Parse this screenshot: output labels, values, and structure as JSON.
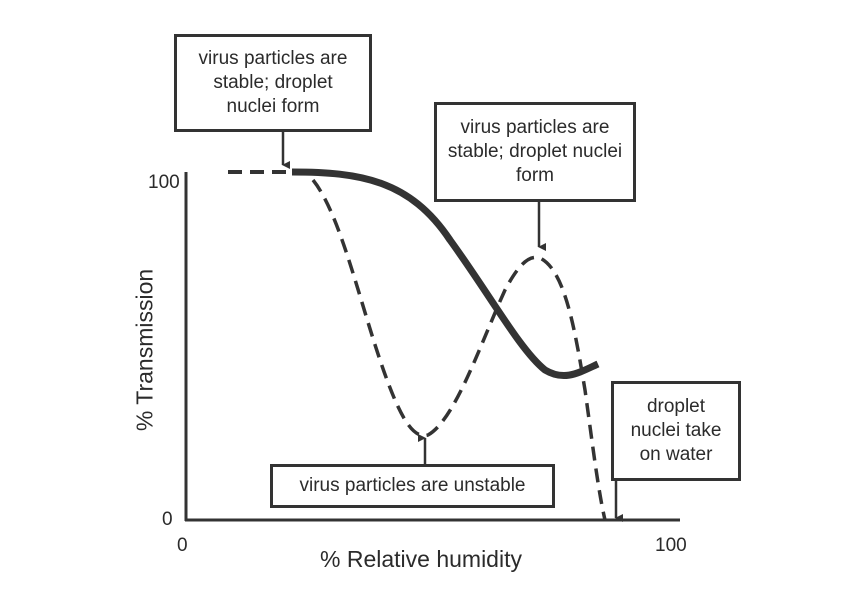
{
  "diagram": {
    "y_axis_label": "% Transmission",
    "x_axis_label": "% Relative humidity",
    "y_ticks": [
      "100",
      "0"
    ],
    "x_ticks": [
      "0",
      "100"
    ],
    "annotations": [
      {
        "text": "virus particles are stable; droplet nuclei form"
      },
      {
        "text": "virus particles are stable; droplet nuclei form"
      },
      {
        "text": "virus particles are unstable"
      },
      {
        "text": "droplet nuclei take on water"
      }
    ],
    "colors": {
      "line": "#333333",
      "background": "#ffffff"
    }
  }
}
